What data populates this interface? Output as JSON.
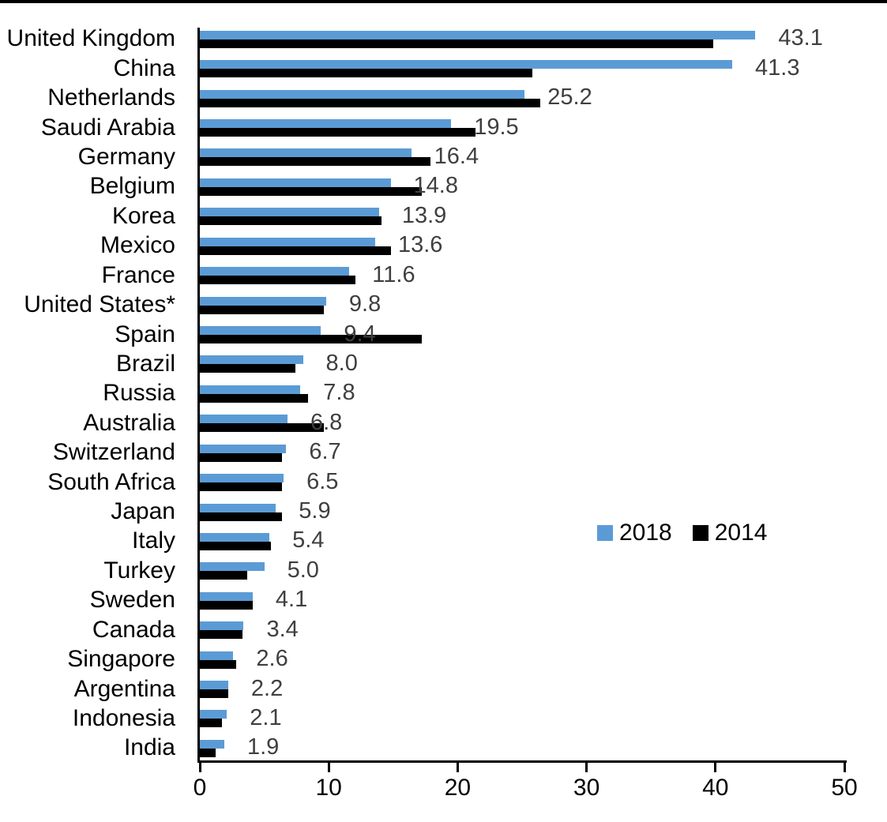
{
  "chart_data": {
    "type": "bar",
    "orientation": "horizontal",
    "title": "",
    "xlabel": "",
    "ylabel": "",
    "categories": [
      "United Kingdom",
      "China",
      "Netherlands",
      "Saudi Arabia",
      "Germany",
      "Belgium",
      "Korea",
      "Mexico",
      "France",
      "United States*",
      "Spain",
      "Brazil",
      "Russia",
      "Australia",
      "Switzerland",
      "South Africa",
      "Japan",
      "Italy",
      "Turkey",
      "Sweden",
      "Canada",
      "Singapore",
      "Argentina",
      "Indonesia",
      "India"
    ],
    "series": [
      {
        "name": "2018",
        "color": "#5b9bd5",
        "values": [
          43.1,
          41.3,
          25.2,
          19.5,
          16.4,
          14.8,
          13.9,
          13.6,
          11.6,
          9.8,
          9.4,
          8.0,
          7.8,
          6.8,
          6.7,
          6.5,
          5.9,
          5.4,
          5.0,
          4.1,
          3.4,
          2.6,
          2.2,
          2.1,
          1.9
        ]
      },
      {
        "name": "2014",
        "color": "#000000",
        "values": [
          39.8,
          25.8,
          26.4,
          21.4,
          17.9,
          17.2,
          14.1,
          14.8,
          12.1,
          9.6,
          17.2,
          7.4,
          8.4,
          9.6,
          6.4,
          6.4,
          6.4,
          5.5,
          3.7,
          4.1,
          3.3,
          2.8,
          2.2,
          1.7,
          1.2
        ]
      }
    ],
    "data_labels": [
      "43.1",
      "41.3",
      "25.2",
      "19.5",
      "16.4",
      "14.8",
      "13.9",
      "13.6",
      "11.6",
      "9.8",
      "9.4",
      "8.0",
      "7.8",
      "6.8",
      "6.7",
      "6.5",
      "5.9",
      "5.4",
      "5.0",
      "4.1",
      "3.4",
      "2.6",
      "2.2",
      "2.1",
      "1.9"
    ],
    "data_labels_for_series": "2018",
    "data_label_color": "#3f3f3f",
    "x_ticks": [
      "0",
      "10",
      "20",
      "30",
      "40",
      "50"
    ],
    "xlim": [
      0,
      50
    ],
    "grid": "off",
    "legend_position": "middle-right"
  }
}
